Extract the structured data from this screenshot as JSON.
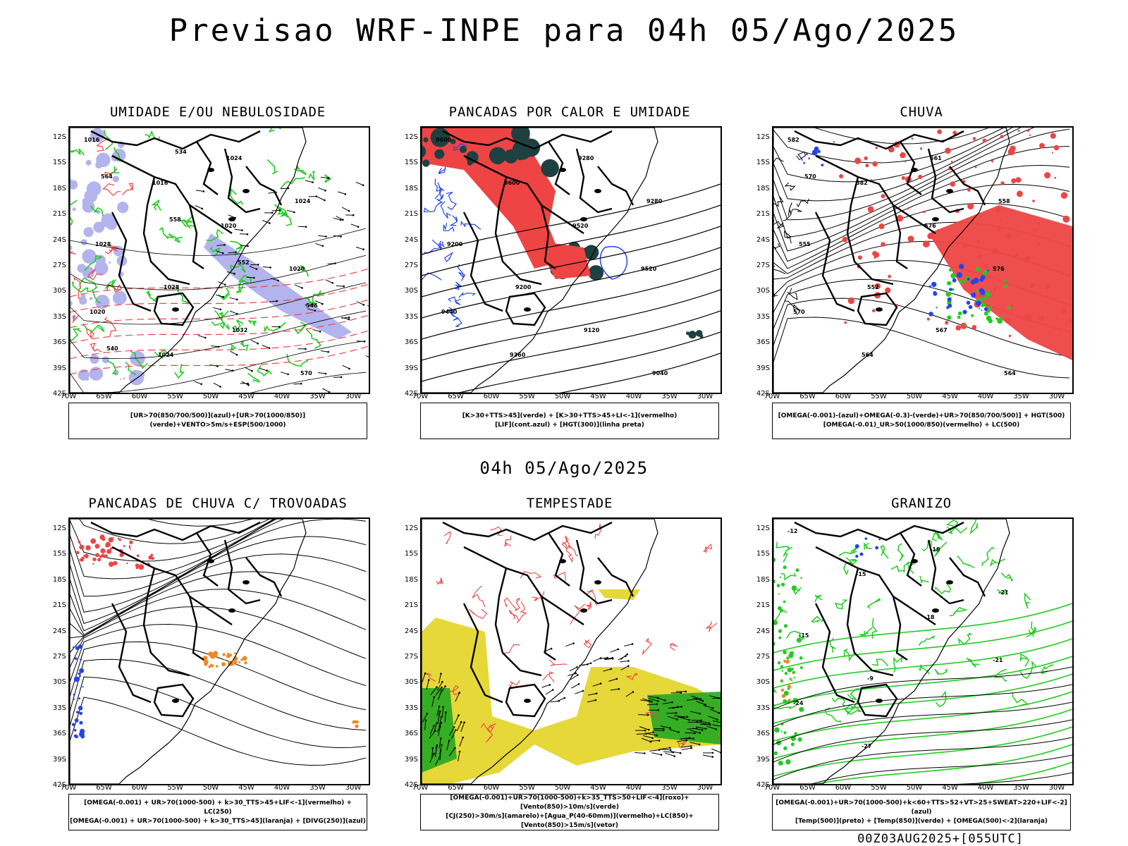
{
  "main_title": "Previsao WRF-INPE  para 04h 05/Ago/2025",
  "mid_title": "04h 05/Ago/2025",
  "footer": "00Z03AUG2025+[055UTC]",
  "lat_labels": [
    "12S",
    "15S",
    "18S",
    "21S",
    "24S",
    "27S",
    "30S",
    "33S",
    "36S",
    "39S",
    "42S"
  ],
  "lon_labels": [
    "70W",
    "65W",
    "60W",
    "55W",
    "50W",
    "45W",
    "40W",
    "35W",
    "30W"
  ],
  "colors": {
    "blue": "#b3b3ee",
    "green": "#22cc22",
    "red": "#ee4444",
    "dark": "#1e4040",
    "yellow": "#e5d838",
    "orange": "#ee8822",
    "royal": "#2244ee"
  },
  "panels": [
    {
      "id": "umidade",
      "title": "UMIDADE E/OU NEBULOSIDADE",
      "legend": [
        "[UR>70(850/700/500)](azul)+[UR>70(1000/850)](verde)+VENTO>5m/s+ESP(500/1000)"
      ],
      "labels": [
        "1016",
        "1016",
        "1020",
        "1020",
        "1020",
        "1024",
        "1024",
        "1024",
        "1028",
        "1028",
        "1032",
        "570",
        "564",
        "558",
        "552",
        "546",
        "540",
        "534"
      ]
    },
    {
      "id": "pancadas-calor",
      "title": "PANCADAS POR CALOR E UMIDADE",
      "legend": [
        "[K>30+TTS>45](verde) + [K>30+TTS>45+LI<-1](vermelho)",
        "[LIF](cont.azul) + [HGT(300)](linha preta)"
      ],
      "labels": [
        "9600",
        "9600",
        "9520",
        "9520",
        "9440",
        "9360",
        "9280",
        "9280",
        "9200",
        "9200",
        "9120",
        "9040"
      ]
    },
    {
      "id": "chuva",
      "title": "CHUVA",
      "legend": [
        "[OMEGA(-0.001)-(azul)+OMEGA(-0.3)-(verde)+UR>70(850/700/500)] + HGT(500)",
        "[OMEGA(-0.01)_UR>50(1000/850)(vermelho) + LC(500)"
      ],
      "labels": [
        "582",
        "582",
        "576",
        "576",
        "570",
        "564",
        "561",
        "558",
        "555",
        "552",
        "567",
        "564",
        "570"
      ]
    },
    {
      "id": "trovoadas",
      "title": "PANCADAS DE CHUVA C/ TROVOADAS",
      "legend": [
        "[OMEGA(-0.001) + UR>70(1000-500) + k>30_TTS>45+LIF<-1](vermelho) + LC(250)",
        "[OMEGA(-0.001) + UR>70(1000-500) + k>30_TTS>45](laranja) + [DIVG(250)](azul)"
      ],
      "labels": []
    },
    {
      "id": "tempestade",
      "title": "TEMPESTADE",
      "legend": [
        "[OMEGA(-0.001)+UR>70(1000-500)+k>35_TTS>50+LIF<-4](roxo)+[Vento(850)>10m/s](verde)",
        "[CJ(250)>30m/s](amarelo)+[Agua_P(40-60mm)](vermelho)+LC(850)+[Vento(850)>15m/s](vetor)"
      ],
      "labels": []
    },
    {
      "id": "granizo",
      "title": "GRANIZO",
      "legend": [
        "[OMEGA(-0.001)+UR>70(1000-500)+k<60+TTS>52+VT>25+SWEAT>220+LIF<-2](azul)",
        "[Temp(500)](preto) + [Temp(850)](verde) + [OMEGA(500)<-2](laranja)"
      ],
      "labels": [
        "-12",
        "-15",
        "-18",
        "-21",
        "-24",
        "-27",
        "-18",
        "-21",
        "-15",
        "-9"
      ]
    }
  ]
}
